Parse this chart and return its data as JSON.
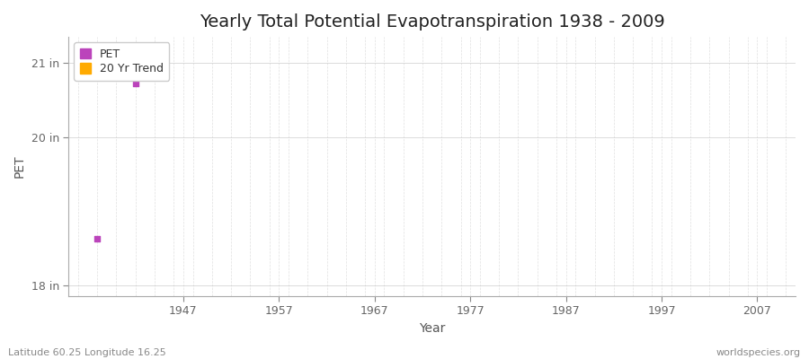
{
  "title": "Yearly Total Potential Evapotranspiration 1938 - 2009",
  "xlabel": "Year",
  "ylabel": "PET",
  "pet_color": "#bb44bb",
  "trend_color": "#ffaa00",
  "background_color": "#ffffff",
  "plot_bg_color": "#ffffff",
  "grid_color_x": "#cccccc",
  "grid_color_y": "#cccccc",
  "xlim": [
    1935,
    2011
  ],
  "ylim": [
    17.85,
    21.35
  ],
  "yticks": [
    18,
    20,
    21
  ],
  "ytick_labels": [
    "18 in",
    "20 in",
    "21 in"
  ],
  "xticks": [
    1947,
    1957,
    1967,
    1977,
    1987,
    1997,
    2007
  ],
  "pet_data": [
    [
      1938,
      18.62
    ],
    [
      1942,
      20.72
    ]
  ],
  "trend_data": [],
  "legend_labels": [
    "PET",
    "20 Yr Trend"
  ],
  "footer_left": "Latitude 60.25 Longitude 16.25",
  "footer_right": "worldspecies.org",
  "title_fontsize": 14,
  "axis_label_fontsize": 10,
  "tick_fontsize": 9,
  "footer_fontsize": 8,
  "legend_fontsize": 9
}
